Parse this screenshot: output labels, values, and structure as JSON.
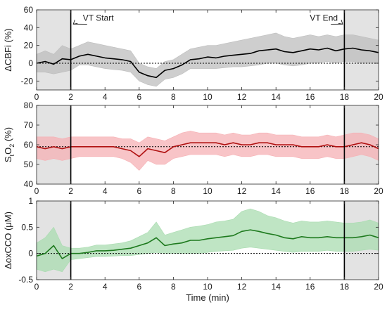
{
  "chart_data": [
    {
      "type": "line",
      "ylabel": "ΔCBFi (%)",
      "xlabel": "",
      "xlim": [
        0,
        20
      ],
      "ylim": [
        -30,
        60
      ],
      "yticks": [
        -20,
        0,
        20,
        40,
        60
      ],
      "xticks": [
        0,
        2,
        4,
        6,
        8,
        10,
        12,
        14,
        16,
        18,
        20
      ],
      "shade_color": "#e3e3e3",
      "line_color": "#000000",
      "band_color": "#bdbdbd",
      "baseline": 0,
      "annotations": [
        {
          "text": "VT Start",
          "x": 3.2,
          "y": 51,
          "arrow_to_x": 2.15,
          "arrow_to_y": 44
        },
        {
          "text": "VT End",
          "x": 16.8,
          "y": 51,
          "arrow_to_x": 17.9,
          "arrow_to_y": 44
        }
      ],
      "series": [
        {
          "x": [
            0,
            0.5,
            1,
            1.5,
            2,
            2.5,
            3,
            3.5,
            4,
            4.5,
            5,
            5.5,
            6,
            6.5,
            7,
            7.5,
            8,
            8.5,
            9,
            9.5,
            10,
            10.5,
            11,
            11.5,
            12,
            12.5,
            13,
            13.5,
            14,
            14.5,
            15,
            15.5,
            16,
            16.5,
            17,
            17.5,
            18,
            18.5,
            19,
            19.5,
            20
          ],
          "y": [
            0,
            2,
            -1,
            5,
            4,
            8,
            10,
            8,
            6,
            5,
            4,
            2,
            -10,
            -14,
            -16,
            -8,
            -6,
            -2,
            4,
            5,
            7,
            6,
            8,
            9,
            10,
            11,
            14,
            15,
            16,
            13,
            12,
            14,
            16,
            15,
            17,
            14,
            16,
            17,
            15,
            14,
            12
          ],
          "lower": [
            -10,
            -10,
            -12,
            -10,
            -8,
            -2,
            -2,
            -4,
            -6,
            -7,
            -8,
            -10,
            -20,
            -24,
            -26,
            -18,
            -16,
            -12,
            -6,
            -6,
            -6,
            -6,
            -5,
            -4,
            -4,
            -3,
            -2,
            0,
            0,
            -2,
            -3,
            -2,
            0,
            0,
            2,
            0,
            2,
            2,
            0,
            0,
            0
          ],
          "upper": [
            10,
            14,
            10,
            20,
            16,
            20,
            24,
            22,
            20,
            18,
            16,
            14,
            0,
            -4,
            -6,
            2,
            4,
            10,
            16,
            18,
            20,
            20,
            22,
            24,
            26,
            28,
            30,
            32,
            34,
            30,
            28,
            30,
            32,
            30,
            32,
            30,
            32,
            32,
            30,
            28,
            26
          ]
        }
      ]
    },
    {
      "type": "line",
      "ylabel": "StO2 (%)",
      "ylabel_main": "S",
      "ylabel_sub": "t",
      "ylabel_mid": "O",
      "ylabel_sub2": "2",
      "ylabel_tail": " (%)",
      "xlabel": "",
      "xlim": [
        0,
        20
      ],
      "ylim": [
        40,
        80
      ],
      "yticks": [
        40,
        50,
        60,
        70,
        80
      ],
      "xticks": [
        0,
        2,
        4,
        6,
        8,
        10,
        12,
        14,
        16,
        18,
        20
      ],
      "shade_color": "#e3e3e3",
      "line_color": "#b01010",
      "band_color": "#f6b0b4",
      "baseline": 59,
      "series": [
        {
          "x": [
            0,
            0.5,
            1,
            1.5,
            2,
            2.5,
            3,
            3.5,
            4,
            4.5,
            5,
            5.5,
            6,
            6.5,
            7,
            7.5,
            8,
            8.5,
            9,
            9.5,
            10,
            10.5,
            11,
            11.5,
            12,
            12.5,
            13,
            13.5,
            14,
            14.5,
            15,
            15.5,
            16,
            16.5,
            17,
            17.5,
            18,
            18.5,
            19,
            19.5,
            20
          ],
          "y": [
            59,
            58,
            59,
            58,
            59,
            59,
            59,
            59,
            59,
            59,
            58,
            57,
            54,
            58,
            57,
            56,
            59,
            60,
            61,
            61,
            61,
            61,
            60,
            61,
            60,
            60,
            61,
            61,
            60,
            60,
            60,
            59,
            59,
            59,
            60,
            59,
            59,
            60,
            61,
            60,
            58
          ],
          "lower": [
            53,
            52,
            53,
            52,
            53,
            54,
            54,
            54,
            54,
            54,
            53,
            51,
            47,
            52,
            50,
            50,
            53,
            54,
            55,
            55,
            55,
            55,
            54,
            55,
            54,
            54,
            55,
            55,
            54,
            54,
            54,
            53,
            53,
            53,
            54,
            53,
            53,
            54,
            55,
            54,
            52
          ],
          "upper": [
            64,
            64,
            64,
            63,
            64,
            64,
            64,
            64,
            64,
            64,
            63,
            63,
            61,
            64,
            63,
            62,
            64,
            66,
            67,
            66,
            66,
            66,
            65,
            66,
            65,
            65,
            66,
            66,
            65,
            65,
            65,
            64,
            64,
            64,
            65,
            64,
            65,
            66,
            66,
            65,
            63
          ]
        }
      ]
    },
    {
      "type": "line",
      "ylabel": "ΔoxCCO (μM)",
      "xlabel": "Time (min)",
      "xlim": [
        0,
        20
      ],
      "ylim": [
        -0.5,
        1
      ],
      "yticks": [
        -0.5,
        0,
        0.5,
        1
      ],
      "xticks": [
        0,
        2,
        4,
        6,
        8,
        10,
        12,
        14,
        16,
        18,
        20
      ],
      "shade_color": "#e3e3e3",
      "line_color": "#1e7a1e",
      "band_color": "#a9dcb0",
      "baseline": 0,
      "series": [
        {
          "x": [
            0,
            0.5,
            1,
            1.5,
            2,
            2.5,
            3,
            3.5,
            4,
            4.5,
            5,
            5.5,
            6,
            6.5,
            7,
            7.5,
            8,
            8.5,
            9,
            9.5,
            10,
            10.5,
            11,
            11.5,
            12,
            12.5,
            13,
            13.5,
            14,
            14.5,
            15,
            15.5,
            16,
            16.5,
            17,
            17.5,
            18,
            18.5,
            19,
            19.5,
            20
          ],
          "y": [
            -0.05,
            0.0,
            0.15,
            -0.1,
            0.0,
            0.0,
            0.02,
            0.05,
            0.05,
            0.06,
            0.08,
            0.1,
            0.15,
            0.2,
            0.3,
            0.15,
            0.18,
            0.2,
            0.25,
            0.25,
            0.28,
            0.3,
            0.32,
            0.34,
            0.42,
            0.45,
            0.42,
            0.38,
            0.35,
            0.3,
            0.28,
            0.32,
            0.3,
            0.3,
            0.32,
            0.3,
            0.3,
            0.3,
            0.32,
            0.35,
            0.3
          ],
          "lower": [
            -0.3,
            -0.35,
            -0.3,
            -0.35,
            -0.12,
            -0.1,
            -0.08,
            -0.06,
            -0.06,
            -0.05,
            -0.04,
            -0.04,
            -0.02,
            0.0,
            0.02,
            0.0,
            0.0,
            0.0,
            0.0,
            0.0,
            0.02,
            0.04,
            0.05,
            0.06,
            0.1,
            0.12,
            0.1,
            0.08,
            0.06,
            0.04,
            0.02,
            0.04,
            0.04,
            0.04,
            0.06,
            0.04,
            0.04,
            0.04,
            0.06,
            0.08,
            0.06
          ],
          "upper": [
            0.2,
            0.3,
            0.5,
            0.15,
            0.1,
            0.1,
            0.12,
            0.16,
            0.16,
            0.18,
            0.2,
            0.24,
            0.32,
            0.4,
            0.6,
            0.35,
            0.4,
            0.45,
            0.5,
            0.52,
            0.55,
            0.6,
            0.62,
            0.65,
            0.8,
            0.85,
            0.8,
            0.72,
            0.68,
            0.62,
            0.58,
            0.62,
            0.6,
            0.6,
            0.62,
            0.6,
            0.58,
            0.58,
            0.6,
            0.64,
            0.58
          ]
        }
      ]
    }
  ],
  "vt_lines": [
    2,
    18
  ],
  "shade_regions": [
    [
      0,
      2
    ],
    [
      18,
      20
    ]
  ]
}
